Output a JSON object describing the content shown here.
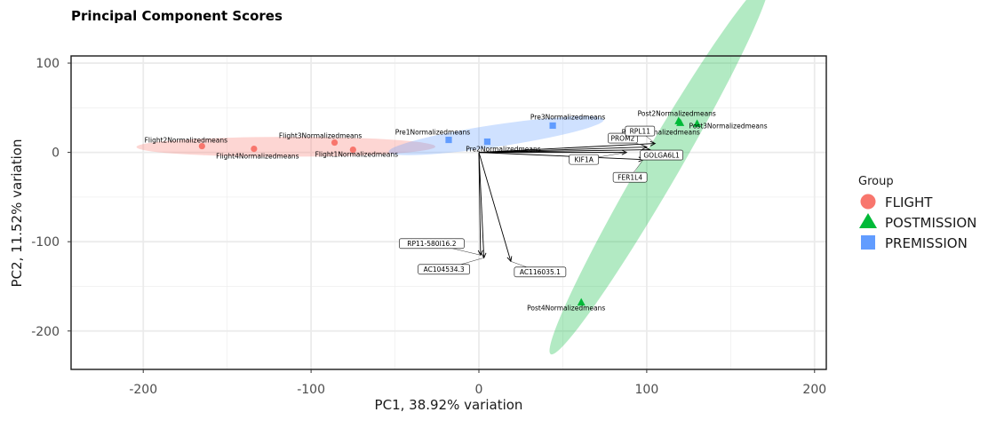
{
  "chart_data": {
    "type": "scatter",
    "title": "Principal Component Scores",
    "xlabel": "PC1, 38.92% variation",
    "ylabel": "PC2, 11.52% variation",
    "xlim": [
      -243,
      207
    ],
    "ylim": [
      -243,
      108
    ],
    "x_ticks": [
      -200,
      -100,
      0,
      100,
      200
    ],
    "x_tick_labels": [
      "-200",
      "-100",
      "0",
      "100",
      "200"
    ],
    "y_ticks": [
      -200,
      -100,
      0,
      100
    ],
    "y_tick_labels": [
      "-200",
      "-100",
      "0",
      "100"
    ],
    "grid": true,
    "legend": {
      "title": "Group",
      "position": "right",
      "entries": [
        {
          "label": "FLIGHT",
          "color": "#F8766D",
          "shape": "circle"
        },
        {
          "label": "POSTMISSION",
          "color": "#00BA38",
          "shape": "triangle"
        },
        {
          "label": "PREMISSION",
          "color": "#619CFF",
          "shape": "square"
        }
      ]
    },
    "points": [
      {
        "label": "Flight1Normalizedmeans",
        "group": "FLIGHT",
        "x": -75,
        "y": 3
      },
      {
        "label": "Flight2Normalizedmeans",
        "group": "FLIGHT",
        "x": -165,
        "y": 7
      },
      {
        "label": "Flight3Normalizedmeans",
        "group": "FLIGHT",
        "x": -86,
        "y": 11
      },
      {
        "label": "Flight4Normalizedmeans",
        "group": "FLIGHT",
        "x": -134,
        "y": 4
      },
      {
        "label": "Post2Normalizedmeans",
        "group": "POSTMISSION",
        "x": 119,
        "y": 35
      },
      {
        "label": "Post1Normalizedmeans",
        "group": "POSTMISSION",
        "x": 120,
        "y": 33
      },
      {
        "label": "Post3Normalizedmeans",
        "group": "POSTMISSION",
        "x": 130,
        "y": 32
      },
      {
        "label": "Post4Normalizedmeans",
        "group": "POSTMISSION",
        "x": 61,
        "y": -168
      },
      {
        "label": "Pre1Normalizedmeans",
        "group": "PREMISSION",
        "x": -18,
        "y": 14
      },
      {
        "label": "Pre2Normalizedmeans",
        "group": "PREMISSION",
        "x": 5,
        "y": 12
      },
      {
        "label": "Pre3Normalizedmeans",
        "group": "PREMISSION",
        "x": 44,
        "y": 30
      }
    ],
    "loadings": [
      {
        "label": "PROM2",
        "x": 100,
        "y": 6
      },
      {
        "label": "RPL11",
        "x": 105,
        "y": 10
      },
      {
        "label": "KIF1A",
        "x": 88,
        "y": 0
      },
      {
        "label": "FER1L4",
        "x": 98,
        "y": -8
      },
      {
        "label": "GOLGA6L1",
        "x": 102,
        "y": 3
      },
      {
        "label": "RP11-580I16.2",
        "x": 1,
        "y": -115
      },
      {
        "label": "AC104534.3",
        "x": 3,
        "y": -118
      },
      {
        "label": "AC116035.1",
        "x": 19,
        "y": -122
      }
    ]
  }
}
